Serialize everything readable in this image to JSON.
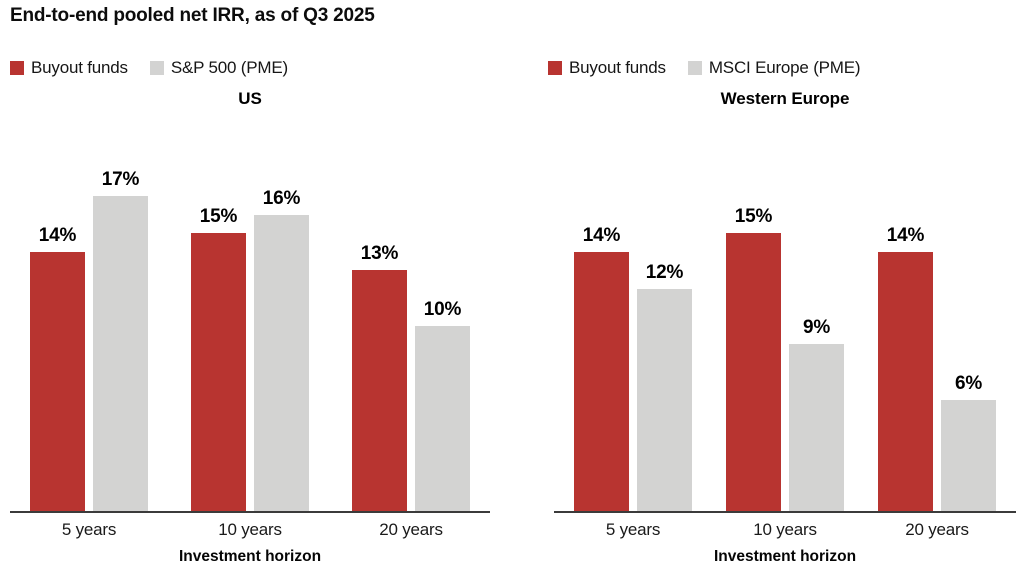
{
  "title": "End-to-end pooled net IRR, as of Q3 2025",
  "colors": {
    "buyout_red": "#b83430",
    "pme_gray": "#d3d3d2",
    "axis_line": "#3b3b3b",
    "text": "#000000"
  },
  "chart_data": [
    {
      "type": "bar",
      "title": "US",
      "categories": [
        "5 years",
        "10 years",
        "20 years"
      ],
      "series": [
        {
          "name": "Buyout funds",
          "color_key": "buyout_red",
          "values": [
            14,
            15,
            13
          ]
        },
        {
          "name": "S&P 500 (PME)",
          "color_key": "pme_gray",
          "values": [
            17,
            16,
            10
          ]
        }
      ],
      "xlabel": "Investment horizon",
      "ylabel": "",
      "ylim": [
        0,
        20
      ],
      "value_suffix": "%",
      "grid": false,
      "legend_position": "top-left",
      "value_labels": true
    },
    {
      "type": "bar",
      "title": "Western Europe",
      "categories": [
        "5 years",
        "10 years",
        "20 years"
      ],
      "series": [
        {
          "name": "Buyout funds",
          "color_key": "buyout_red",
          "values": [
            14,
            15,
            14
          ]
        },
        {
          "name": "MSCI Europe (PME)",
          "color_key": "pme_gray",
          "values": [
            12,
            9,
            6
          ]
        }
      ],
      "xlabel": "Investment horizon",
      "ylabel": "",
      "ylim": [
        0,
        20
      ],
      "value_suffix": "%",
      "grid": false,
      "legend_position": "top-left",
      "value_labels": true
    }
  ]
}
